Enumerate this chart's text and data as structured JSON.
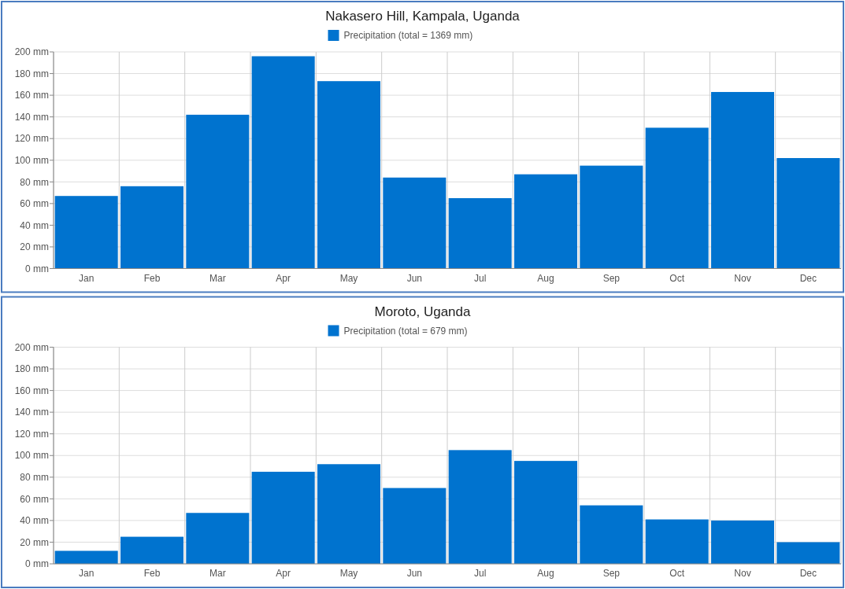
{
  "chart_data": [
    {
      "type": "bar",
      "title": "Nakasero Hill, Kampala, Uganda",
      "categories": [
        "Jan",
        "Feb",
        "Mar",
        "Apr",
        "May",
        "Jun",
        "Jul",
        "Aug",
        "Sep",
        "Oct",
        "Nov",
        "Dec"
      ],
      "series": [
        {
          "name": "Precipitation (total = 1369 mm)",
          "color": "#0073cf",
          "values": [
            67,
            76,
            142,
            196,
            173,
            84,
            65,
            87,
            95,
            130,
            163,
            102
          ]
        }
      ],
      "ylim": [
        0,
        200
      ],
      "yticks": [
        {
          "value": 0,
          "label": "0 mm"
        },
        {
          "value": 20,
          "label": "20 mm"
        },
        {
          "value": 40,
          "label": "40 mm"
        },
        {
          "value": 60,
          "label": "60 mm"
        },
        {
          "value": 80,
          "label": "80 mm"
        },
        {
          "value": 100,
          "label": "100 mm"
        },
        {
          "value": 120,
          "label": "120 mm"
        },
        {
          "value": 140,
          "label": "140 mm"
        },
        {
          "value": 160,
          "label": "160 mm"
        },
        {
          "value": 180,
          "label": "180 mm"
        },
        {
          "value": 200,
          "label": "200 mm"
        }
      ],
      "grid": true,
      "legend": "top"
    },
    {
      "type": "bar",
      "title": "Moroto, Uganda",
      "categories": [
        "Jan",
        "Feb",
        "Mar",
        "Apr",
        "May",
        "Jun",
        "Jul",
        "Aug",
        "Sep",
        "Oct",
        "Nov",
        "Dec"
      ],
      "series": [
        {
          "name": "Precipitation (total = 679 mm)",
          "color": "#0073cf",
          "values": [
            12,
            25,
            47,
            85,
            92,
            70,
            105,
            95,
            54,
            41,
            40,
            20
          ]
        }
      ],
      "ylim": [
        0,
        200
      ],
      "yticks": [
        {
          "value": 0,
          "label": "0 mm"
        },
        {
          "value": 20,
          "label": "20 mm"
        },
        {
          "value": 40,
          "label": "40 mm"
        },
        {
          "value": 60,
          "label": "60 mm"
        },
        {
          "value": 80,
          "label": "80 mm"
        },
        {
          "value": 100,
          "label": "100 mm"
        },
        {
          "value": 120,
          "label": "120 mm"
        },
        {
          "value": 140,
          "label": "140 mm"
        },
        {
          "value": 160,
          "label": "160 mm"
        },
        {
          "value": 180,
          "label": "180 mm"
        },
        {
          "value": 200,
          "label": "200 mm"
        }
      ],
      "grid": true,
      "legend": "top"
    }
  ]
}
